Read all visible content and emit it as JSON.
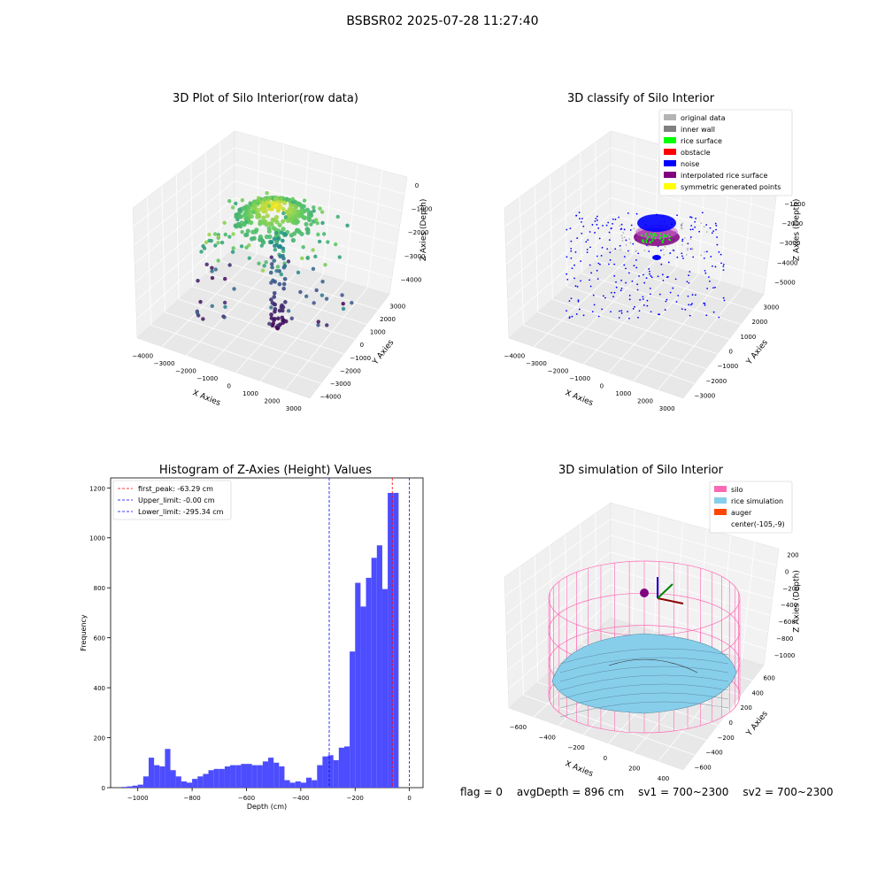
{
  "suptitle": "BSBSR02 2025-07-28 11:27:40",
  "status": {
    "flag": "flag = 0",
    "avg": "avgDepth = 896 cm",
    "sv1": "sv1 = 700~2300",
    "sv2": "sv2 = 700~2300"
  },
  "colors": {
    "hist_bar": "#4d4dff",
    "first_peak": "#ff0000",
    "limit": "#0000ff",
    "silo": "#ff69b4",
    "rice": "#87ceeb",
    "auger": "#ff4500"
  },
  "chart_data": [
    {
      "type": "scatter",
      "title": "3D Plot of Silo Interior(row data)",
      "xlabel": "X Axies",
      "ylabel": "Y Axies",
      "zlabel": "Z Axies (Depth)",
      "x_ticks": [
        "−4000",
        "−3000",
        "−2000",
        "−1000",
        "0",
        "1000",
        "2000",
        "3000"
      ],
      "y_ticks": [
        "−4000",
        "−3000",
        "−2000",
        "−1000",
        "0",
        "1000",
        "2000",
        "3000"
      ],
      "z_ticks": [
        "0",
        "−1000",
        "−2000",
        "−3000",
        "−4000"
      ],
      "xlim": [
        -4000,
        3500
      ],
      "ylim": [
        -4000,
        3500
      ],
      "zlim": [
        -4500,
        0
      ],
      "colormap": "viridis"
    },
    {
      "type": "scatter",
      "title": "3D classify of Silo Interior",
      "xlabel": "X Axies",
      "ylabel": "Y Axies",
      "zlabel": "Z Axies (Depth)",
      "x_ticks": [
        "−4000",
        "−3000",
        "−2000",
        "−1000",
        "0",
        "1000",
        "2000",
        "3000"
      ],
      "y_ticks": [
        "−3000",
        "−2000",
        "−1000",
        "0",
        "1000",
        "2000",
        "3000"
      ],
      "z_ticks": [
        "0",
        "−1000",
        "−2000",
        "−3000",
        "−4000",
        "−5000"
      ],
      "legend": [
        {
          "name": "original data",
          "color": "#b4b4b4"
        },
        {
          "name": "inner wall",
          "color": "#808080"
        },
        {
          "name": "rice surface",
          "color": "#00ff00"
        },
        {
          "name": "obstacle",
          "color": "#ff0000"
        },
        {
          "name": "noise",
          "color": "#0000ff"
        },
        {
          "name": "interpolated rice surface",
          "color": "#800080"
        },
        {
          "name": "symmetric generated points",
          "color": "#ffff00"
        }
      ],
      "legend_position": "top-right"
    },
    {
      "type": "bar",
      "title": "Histogram of Z-Axies (Height) Values",
      "xlabel": "Depth (cm)",
      "ylabel": "Frequency",
      "xlim": [
        -1100,
        50
      ],
      "ylim": [
        0,
        1240
      ],
      "x_ticks": [
        -1000,
        -800,
        -600,
        -400,
        -200,
        0
      ],
      "y_ticks": [
        0,
        200,
        400,
        600,
        800,
        1000,
        1200
      ],
      "bin_width": 20,
      "bin_starts": [
        -1060,
        -1040,
        -1020,
        -1000,
        -980,
        -960,
        -940,
        -920,
        -900,
        -880,
        -860,
        -840,
        -820,
        -800,
        -780,
        -760,
        -740,
        -720,
        -700,
        -680,
        -660,
        -640,
        -620,
        -600,
        -580,
        -560,
        -540,
        -520,
        -500,
        -480,
        -460,
        -440,
        -420,
        -400,
        -380,
        -360,
        -340,
        -320,
        -300,
        -280,
        -260,
        -240,
        -220,
        -200,
        -180,
        -160,
        -140,
        -120,
        -100,
        -80,
        -60,
        -40,
        -20
      ],
      "values": [
        3,
        5,
        8,
        12,
        45,
        120,
        90,
        85,
        155,
        70,
        45,
        25,
        20,
        35,
        45,
        55,
        70,
        75,
        75,
        85,
        90,
        90,
        95,
        95,
        90,
        90,
        105,
        120,
        100,
        85,
        30,
        20,
        25,
        20,
        40,
        30,
        90,
        125,
        130,
        110,
        160,
        165,
        545,
        820,
        725,
        840,
        920,
        970,
        795,
        1180,
        1180,
        0,
        0
      ],
      "lines": [
        {
          "name": "first_peak: -63.29 cm",
          "x": -63.29,
          "color": "#ff0000"
        },
        {
          "name": "Upper_limit: -0.00 cm",
          "x": 0.0,
          "color": "#0000ff"
        },
        {
          "name": "Lower_limit: -295.34 cm",
          "x": -295.34,
          "color": "#0000ff"
        }
      ],
      "legend_position": "top-left"
    },
    {
      "type": "surface",
      "title": "3D simulation of Silo Interior",
      "xlabel": "X Axies",
      "ylabel": "Y Axies",
      "zlabel": "Z Axies (Depth)",
      "x_ticks": [
        "−600",
        "−400",
        "−200",
        "0",
        "200",
        "400"
      ],
      "y_ticks": [
        "−600",
        "−400",
        "−200",
        "0",
        "200",
        "400",
        "600"
      ],
      "z_ticks": [
        "200",
        "0",
        "−200",
        "−400",
        "−600",
        "−800",
        "−1000"
      ],
      "legend": [
        {
          "name": "silo",
          "color": "#ff69b4"
        },
        {
          "name": "rice simulation",
          "color": "#87ceeb"
        },
        {
          "name": "auger",
          "color": "#ff4500"
        },
        {
          "name": "center(-105,-9)",
          "color": ""
        }
      ],
      "legend_position": "top-right"
    }
  ]
}
